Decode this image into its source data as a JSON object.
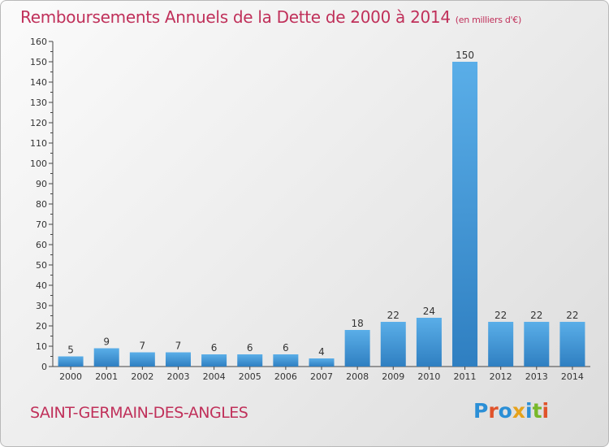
{
  "title": "Remboursements Annuels de la Dette de 2000 à 2014",
  "unit": "(en milliers d'€)",
  "commune": "SAINT-GERMAIN-DES-ANGLES",
  "logo": {
    "text": "Proxiti",
    "colors": [
      "#2b8fd6",
      "#e0532b",
      "#2b8fd6",
      "#e6a21b",
      "#2b8fd6",
      "#78b82a",
      "#e0532b"
    ]
  },
  "chart_data": {
    "type": "bar",
    "title": "Remboursements Annuels de la Dette de 2000 à 2014",
    "xlabel": "",
    "ylabel": "",
    "categories": [
      "2000",
      "2001",
      "2002",
      "2003",
      "2004",
      "2005",
      "2006",
      "2007",
      "2008",
      "2009",
      "2010",
      "2011",
      "2012",
      "2013",
      "2014"
    ],
    "values": [
      5,
      9,
      7,
      7,
      6,
      6,
      6,
      4,
      18,
      22,
      24,
      150,
      22,
      22,
      22
    ],
    "ylim": [
      0,
      160
    ],
    "yticks": [
      0,
      10,
      20,
      30,
      40,
      50,
      60,
      70,
      80,
      90,
      100,
      110,
      120,
      130,
      140,
      150,
      160
    ],
    "grid": false,
    "colors": {
      "bar_light": "#5aaee8",
      "bar_dark": "#2f7fc1",
      "axis": "#444444",
      "tick_label": "#333333"
    }
  }
}
